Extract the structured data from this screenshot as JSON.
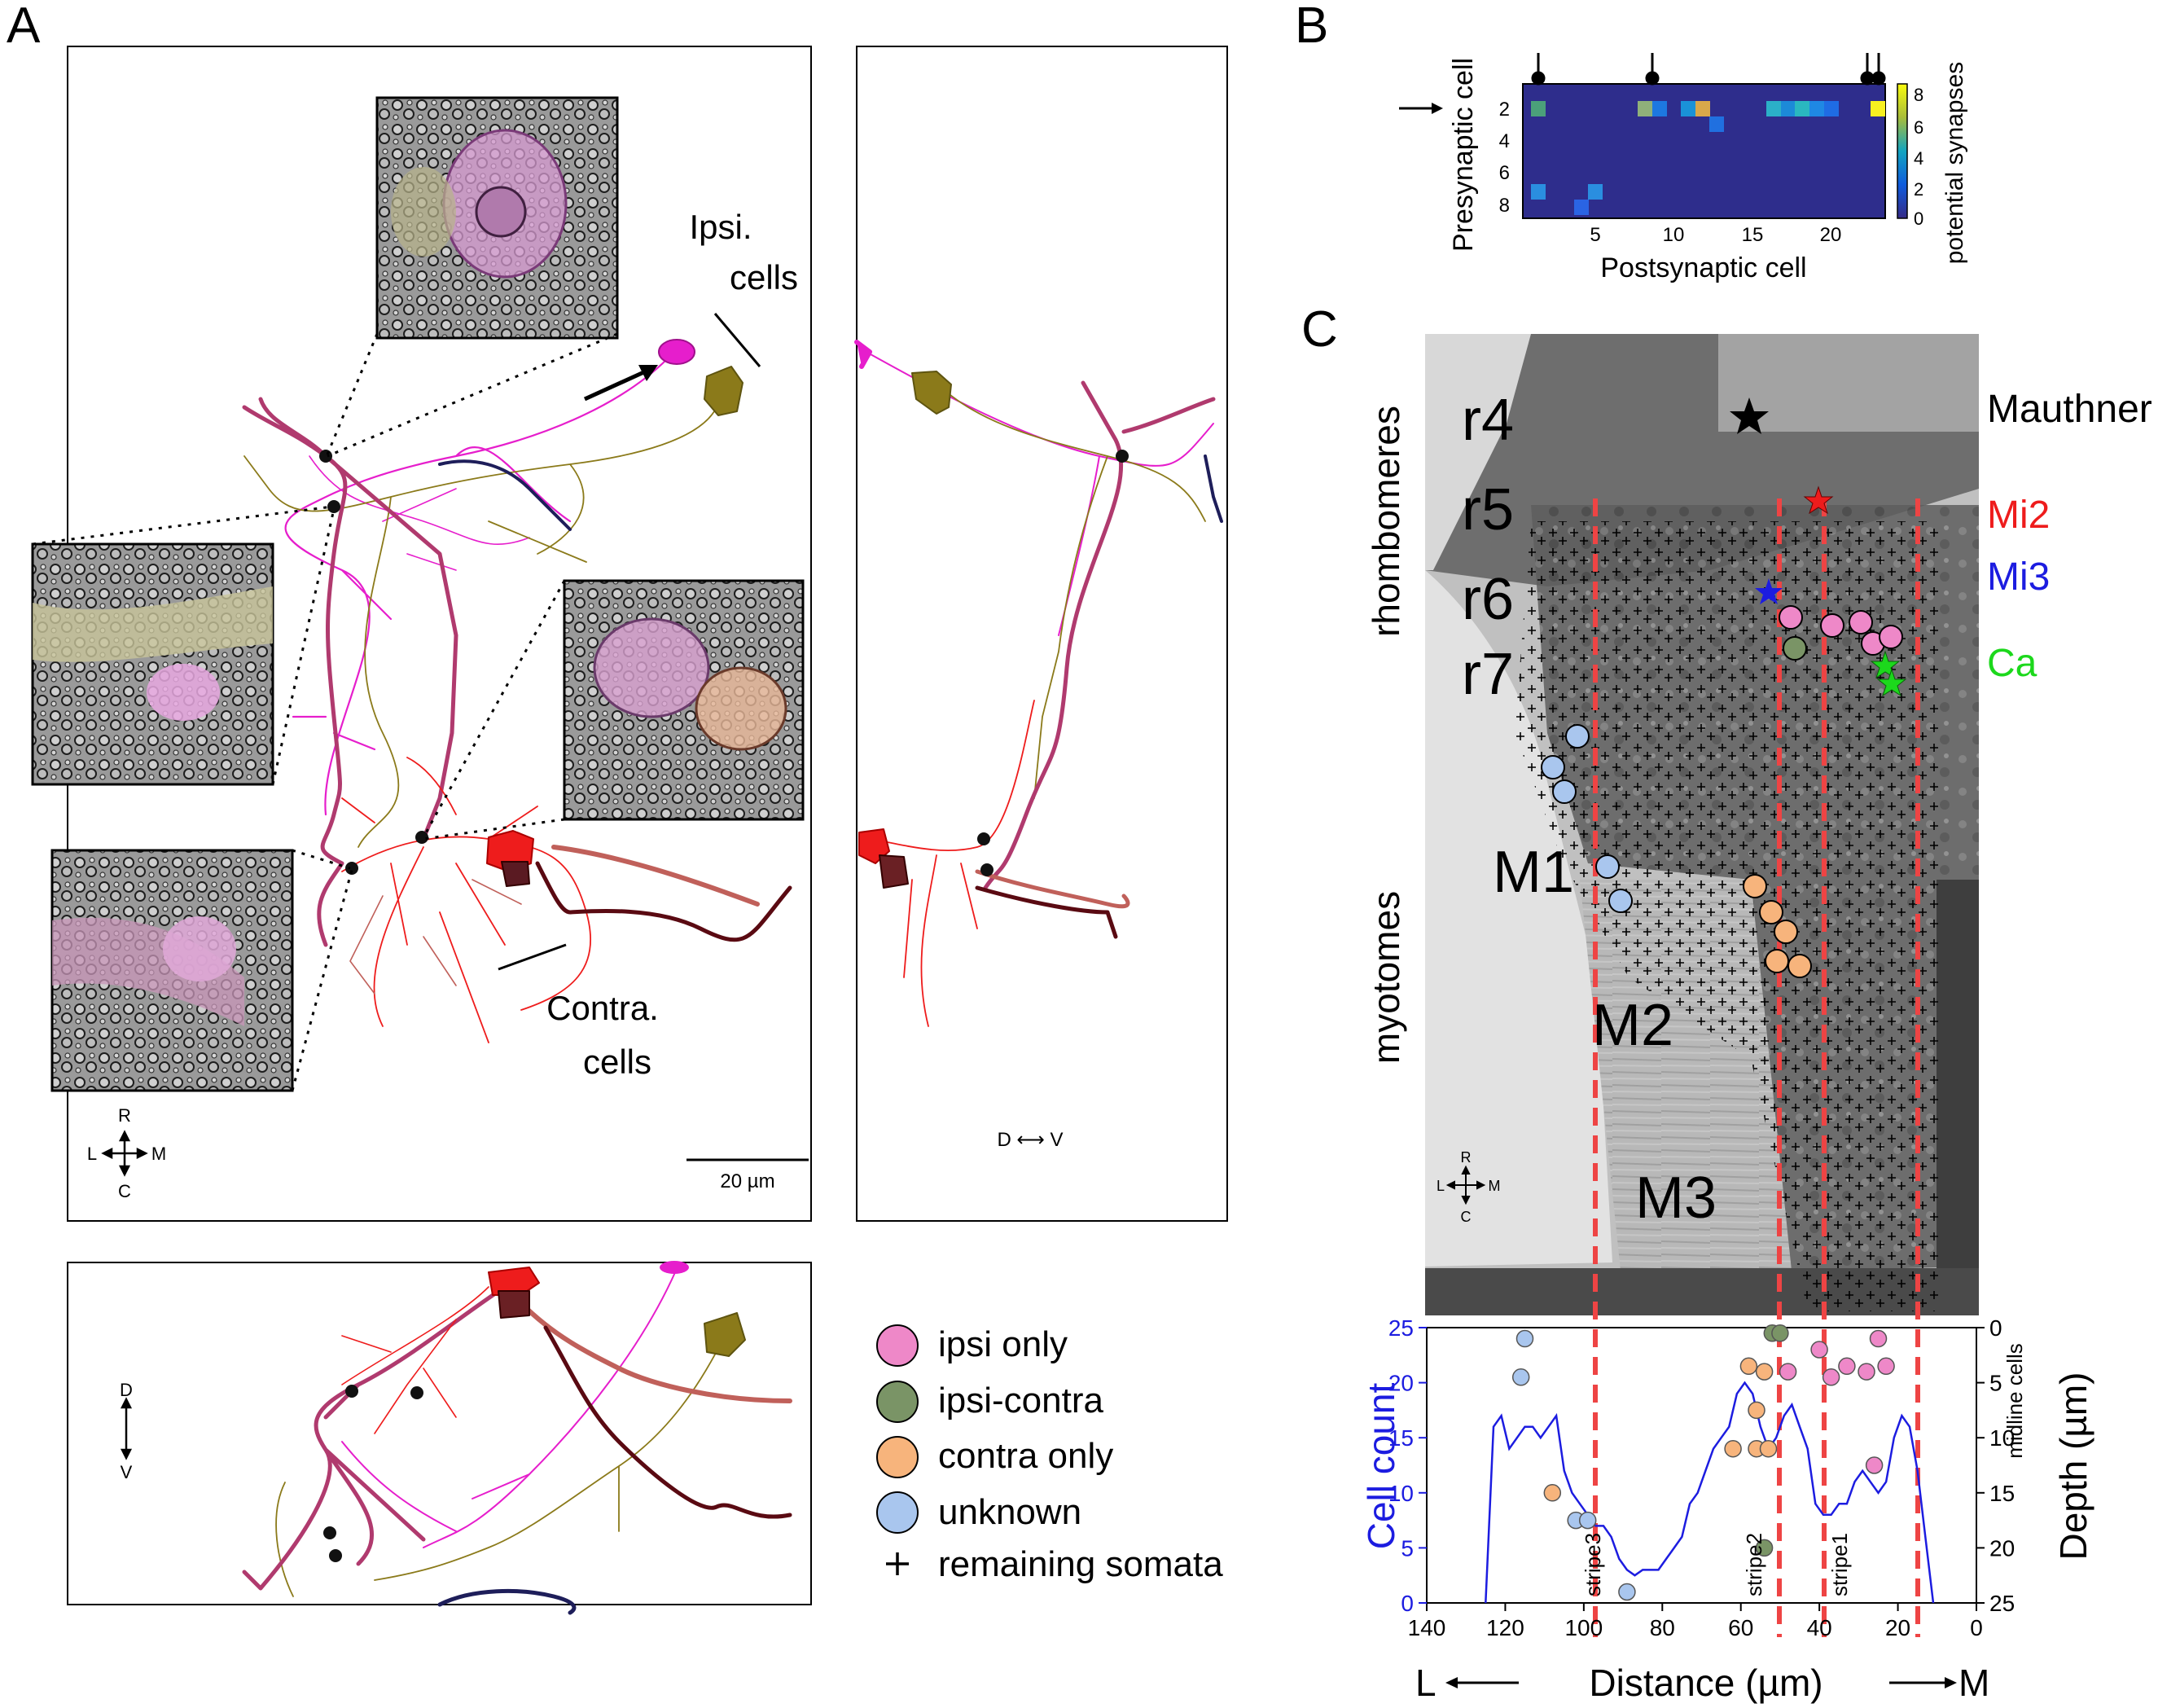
{
  "panels": {
    "a": "A",
    "b": "B",
    "c": "C"
  },
  "panel_a": {
    "ipsi_label_1": "Ipsi.",
    "ipsi_label_2": "cells",
    "contra_label_1": "Contra.",
    "contra_label_2": "cells",
    "scale_bar": "20 µm",
    "compass_r": "R",
    "compass_l": "L",
    "compass_m": "M",
    "compass_c": "C",
    "side_compass": "D ⟷ V",
    "bottom_compass_d": "D",
    "bottom_compass_v": "V",
    "colors": {
      "magenta": "#e61ecc",
      "olive": "#8b7a1a",
      "red": "#ee1c1c",
      "dark_red": "#5a0a12",
      "crimson": "#b03a6e",
      "navy": "#1e1e5a",
      "salmon": "#c0605a"
    }
  },
  "legend": {
    "items": [
      {
        "label": "ipsi only",
        "color": "#ee88c8"
      },
      {
        "label": "ipsi-contra",
        "color": "#7a9466"
      },
      {
        "label": "contra only",
        "color": "#f7b47c"
      },
      {
        "label": "unknown",
        "color": "#a9c6ee"
      }
    ],
    "plus_label": "remaining somata"
  },
  "panel_b": {
    "ylabel": "Presynaptic cell",
    "xlabel": "Postsynaptic cell",
    "colorbar_label": "potential synapses",
    "y_ticks": [
      "2",
      "4",
      "6",
      "8"
    ],
    "x_ticks": [
      "5",
      "10",
      "15",
      "20"
    ],
    "cb_ticks": [
      "8",
      "6",
      "4",
      "2",
      "0"
    ]
  },
  "panel_c": {
    "side_label_top": "rhombomeres",
    "side_label_bottom": "myotomes",
    "rhombomeres": [
      "r4",
      "r5",
      "r6",
      "r7"
    ],
    "myotomes": [
      "M1",
      "M2",
      "M3"
    ],
    "mauthner": "Mauthner",
    "mi2": "Mi2",
    "mi3": "Mi3",
    "ca": "Ca",
    "compass_r": "R",
    "compass_l": "L",
    "compass_m": "M",
    "compass_c": "C",
    "stripes": [
      "stripe3",
      "stripe2",
      "stripe1"
    ],
    "colors": {
      "mi2": "#ee1c1c",
      "mi3": "#1c1ce0",
      "ca": "#1cd81c",
      "stripe": "#ee4444"
    }
  },
  "chart_data": {
    "type": "line",
    "xlabel_left": "L",
    "xlabel": "Distance (µm)",
    "xlabel_right": "M",
    "ylabel_left": "Cell count",
    "ylabel_right": "Depth (µm)",
    "ylabel_right_inner": "midline cells",
    "xlim": [
      140,
      0
    ],
    "ylim": [
      0,
      25
    ],
    "depth_lim": [
      0,
      25
    ],
    "x_ticks": [
      140,
      120,
      100,
      80,
      60,
      40,
      20,
      0
    ],
    "y_ticks": [
      0,
      5,
      10,
      15,
      20,
      25
    ],
    "depth_ticks": [
      0,
      5,
      10,
      15,
      20,
      25
    ],
    "stripe_positions": [
      106,
      56,
      42,
      17
    ],
    "series": [
      {
        "x": [
          125,
          123,
          121,
          119,
          117,
          115,
          113,
          111,
          109,
          107,
          105,
          103,
          101,
          99,
          97,
          95,
          93,
          91,
          89,
          87,
          85,
          83,
          81,
          79,
          77,
          75,
          73,
          71,
          69,
          67,
          65,
          63,
          61,
          59,
          57,
          55,
          53,
          51,
          49,
          47,
          45,
          43,
          41,
          39,
          37,
          35,
          33,
          31,
          29,
          27,
          25,
          23,
          21,
          19,
          17,
          15,
          13,
          11
        ],
        "values": [
          0,
          16,
          17,
          14,
          15,
          16,
          16,
          15,
          16,
          17,
          12,
          10,
          9,
          8,
          7,
          7,
          6,
          4,
          3,
          2.5,
          3,
          3,
          3,
          4,
          5,
          6,
          9,
          10,
          12,
          14,
          15,
          16,
          19,
          20,
          19,
          16,
          14,
          15,
          17,
          18,
          16,
          14,
          9,
          8,
          8,
          9,
          9,
          11,
          12,
          11,
          10,
          11,
          15,
          17,
          16,
          12,
          6,
          0
        ]
      }
    ],
    "midline_cells": [
      {
        "x": 115,
        "depth": 1,
        "class": "unknown"
      },
      {
        "x": 116,
        "depth": 4.5,
        "class": "unknown"
      },
      {
        "x": 108,
        "depth": 15,
        "class": "contra only"
      },
      {
        "x": 102,
        "depth": 17.5,
        "class": "unknown"
      },
      {
        "x": 99,
        "depth": 17.5,
        "class": "unknown"
      },
      {
        "x": 89,
        "depth": 24,
        "class": "unknown"
      },
      {
        "x": 58,
        "depth": 3.5,
        "class": "contra only"
      },
      {
        "x": 52,
        "depth": 0.5,
        "class": "ipsi-contra"
      },
      {
        "x": 50,
        "depth": 0.5,
        "class": "ipsi-contra"
      },
      {
        "x": 48,
        "depth": 4,
        "class": "ipsi only"
      },
      {
        "x": 54,
        "depth": 4,
        "class": "contra only"
      },
      {
        "x": 56,
        "depth": 7.5,
        "class": "contra only"
      },
      {
        "x": 56,
        "depth": 11,
        "class": "contra only"
      },
      {
        "x": 62,
        "depth": 11,
        "class": "contra only"
      },
      {
        "x": 53,
        "depth": 11,
        "class": "contra only"
      },
      {
        "x": 54,
        "depth": 20,
        "class": "ipsi-contra"
      },
      {
        "x": 40,
        "depth": 2,
        "class": "ipsi only"
      },
      {
        "x": 37,
        "depth": 4.5,
        "class": "ipsi only"
      },
      {
        "x": 33,
        "depth": 3.5,
        "class": "ipsi only"
      },
      {
        "x": 28,
        "depth": 4,
        "class": "ipsi only"
      },
      {
        "x": 25,
        "depth": 1,
        "class": "ipsi only"
      },
      {
        "x": 23,
        "depth": 3.5,
        "class": "ipsi only"
      },
      {
        "x": 26,
        "depth": 12.5,
        "class": "ipsi only"
      }
    ]
  }
}
